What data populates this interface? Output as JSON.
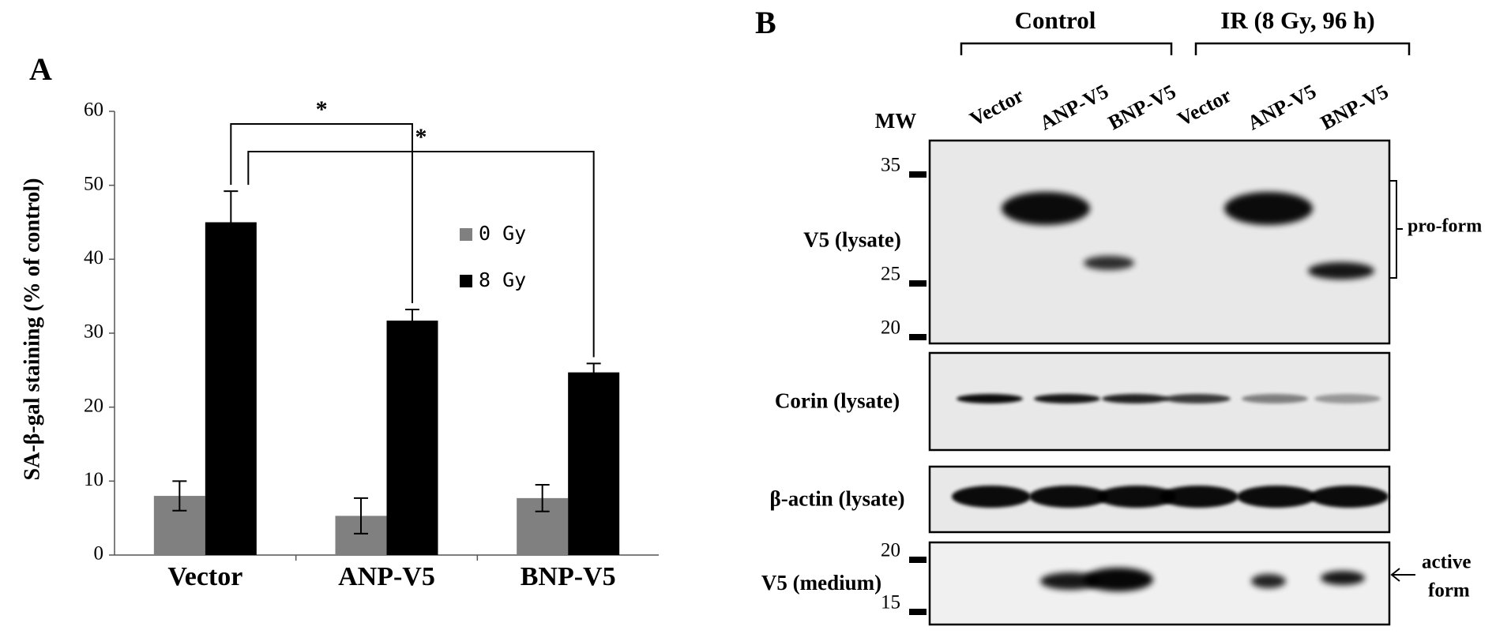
{
  "chart_data": {
    "type": "bar",
    "panel_label": "A",
    "ylabel": "SA-β-gal staining (% of control)",
    "categories": [
      "Vector",
      "ANP-V5",
      "BNP-V5"
    ],
    "series": [
      {
        "name": "0 Gy",
        "color": "#808080",
        "values": [
          8,
          5.3,
          7.7
        ],
        "errors": [
          2,
          2.4,
          1.8
        ]
      },
      {
        "name": "8 Gy",
        "color": "#000000",
        "values": [
          45,
          31.7,
          24.7
        ],
        "errors": [
          4.2,
          1.5,
          1.2
        ]
      }
    ],
    "ylim": [
      0,
      60
    ],
    "yticks": [
      0,
      10,
      20,
      30,
      40,
      50,
      60
    ],
    "annotations": [
      "*",
      "*"
    ]
  },
  "panel_b": {
    "label": "B",
    "groups": [
      "Control",
      "IR (8 Gy, 96 h)"
    ],
    "mw_label": "MW",
    "lanes": [
      "Vector",
      "ANP-V5",
      "BNP-V5",
      "Vector",
      "ANP-V5",
      "BNP-V5"
    ],
    "blots": [
      {
        "label": "V5 (lysate)",
        "markers": [
          "35",
          "25",
          "20"
        ]
      },
      {
        "label": "Corin (lysate)"
      },
      {
        "label": "β-actin (lysate)"
      },
      {
        "label": "V5 (medium)",
        "markers": [
          "20",
          "15"
        ]
      }
    ],
    "pro_form": "pro-form",
    "active_form": [
      "active",
      "form"
    ]
  }
}
